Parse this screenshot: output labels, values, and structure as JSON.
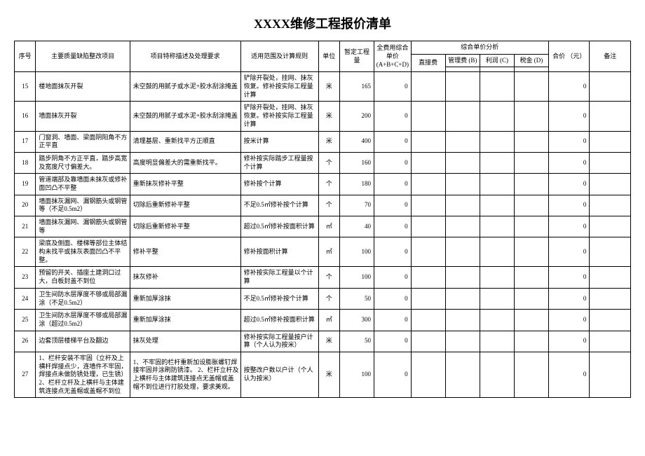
{
  "title": "XXXX维修工程报价清单",
  "headers": {
    "seq": "序号",
    "item": "主要质量缺陷整改项目",
    "desc": "项目特称描述及处理要求",
    "scope": "适用范围及计算规则",
    "unit": "单位",
    "qty": "暂定工程量",
    "price": "全费用综合单价\n(A+B+C+D)",
    "analysis": "综合单价分析",
    "direct": "直接费",
    "mgmt": "管理费\n(B)",
    "profit": "利润\n(C)",
    "tax": "税金\n(D)",
    "total": "合价\n（元）",
    "remark": "备注"
  },
  "rows": [
    {
      "seq": "15",
      "item": "楼地面抹灰开裂",
      "desc": "未空鼓的用腻子或水泥+胶水刮涂掩盖",
      "scope": "铲除开裂处，挂网、抹灰恢复。修补按实际工程量计算",
      "unit": "米",
      "qty": "165",
      "price": "0",
      "total": "0"
    },
    {
      "seq": "16",
      "item": "墙面抹灰开裂",
      "desc": "未空鼓的用腻子或水泥+胶水刮涂掩盖",
      "scope": "铲除开裂处，挂网、抹灰恢复。修补按实际工程量计算",
      "unit": "米",
      "qty": "200",
      "price": "0",
      "total": "0"
    },
    {
      "seq": "17",
      "item": "门窗洞、墙面、梁面阴阳角不方正平直",
      "desc": "清理基层、重新找平方正顺直",
      "scope": "按米计算",
      "unit": "米",
      "qty": "400",
      "price": "0",
      "total": "0"
    },
    {
      "seq": "18",
      "item": "踏步阴角不方正平直，踏步高宽及宽度尺寸偏差大。",
      "desc": "高度明显偏差大的需重新找平。",
      "scope": "修补按实际踏步工程量按个计算",
      "unit": "个",
      "qty": "160",
      "price": "0",
      "total": "0"
    },
    {
      "seq": "19",
      "item": "管道端部及靠墙面未抹灰或修补面凹凸不平整",
      "desc": "重新抹灰修补平整",
      "scope": "修补按个计算",
      "unit": "个",
      "qty": "180",
      "price": "0",
      "total": "0"
    },
    {
      "seq": "20",
      "item": "墙面抹灰漏网、漏钢筋头或钢管等（不足0.5m2）",
      "desc": "切除后重新修补平整",
      "scope": "不足0.5㎡修补按个计算",
      "unit": "个",
      "qty": "70",
      "price": "0",
      "total": "0"
    },
    {
      "seq": "21",
      "item": "墙面抹灰漏网、漏钢筋头或钢管等",
      "desc": "切除后重新修补平整",
      "scope": "超过0.5㎡修补按面积计算",
      "unit": "㎡",
      "qty": "40",
      "price": "0",
      "total": "0"
    },
    {
      "seq": "22",
      "item": "梁底及侧面、楼梯等部位主体结构未找平或抹灰表面凹凸不平整。",
      "desc": "修补平整",
      "scope": "修补按面积计算",
      "unit": "㎡",
      "qty": "100",
      "price": "0",
      "total": "0"
    },
    {
      "seq": "23",
      "item": "预留的开关、插座土建洞口过大，白板封盖不到位",
      "desc": "抹灰修补",
      "scope": "修补按实际工程量以个计算",
      "unit": "个",
      "qty": "100",
      "price": "0",
      "total": "0"
    },
    {
      "seq": "24",
      "item": "卫生间防水层厚度不够或局部漏涂（不足0.5m2）",
      "desc": "重新加厚涂抹",
      "scope": "不足0.5㎡修补按个计算",
      "unit": "个",
      "qty": "50",
      "price": "0",
      "total": "0"
    },
    {
      "seq": "25",
      "item": "卫生间防水层厚度不够或局部漏涂（超过0.5m2）",
      "desc": "重新加厚涂抹",
      "scope": "超过0.5㎡修补按面积计算",
      "unit": "㎡",
      "qty": "300",
      "price": "0",
      "total": "0"
    },
    {
      "seq": "26",
      "item": "边套顶层楼梯平台及翻边",
      "desc": "抹灰处理",
      "scope": "修补按实际工程量按户计算（个人认为按米）",
      "unit": "米",
      "qty": "50",
      "price": "0",
      "total": "0"
    },
    {
      "seq": "27",
      "item": "1、栏杆安装不牢固（立杆及上横杆焊接点少，连墙件不牢固，焊接点未做防锈处理，已生锈）\n2、栏杆立杆及上横杆与主体建筑连接点无盖帽或盖帽不到位",
      "desc": "1、不牢固的栏杆重新加设膨胀螺钉焊接牢固并涂刷防锈漆。\n2、栏杆立杆及上横杆与主体建筑连接点无盖帽或盖帽不到位进行打胶处理，要求美观。",
      "scope": "按整改户数以户计（个人认为按米）",
      "unit": "米",
      "qty": "100",
      "price": "0",
      "total": "0"
    }
  ]
}
